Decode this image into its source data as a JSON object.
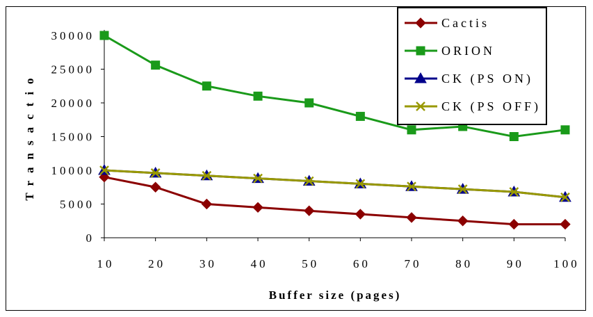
{
  "chart_data": {
    "type": "line",
    "x": [
      10,
      20,
      30,
      40,
      50,
      60,
      70,
      80,
      90,
      100
    ],
    "xlabel": "Buffer size (pages)",
    "ylabel": "Transactio",
    "ylim": [
      0,
      30000
    ],
    "yticks": [
      0,
      5000,
      10000,
      15000,
      20000,
      25000,
      30000
    ],
    "grid": false,
    "legend_position": "top-right",
    "series": [
      {
        "name": "Cactis",
        "color": "#8B0000",
        "marker": "diamond",
        "values": [
          9000,
          7500,
          5000,
          4500,
          4000,
          3500,
          3000,
          2500,
          2000,
          2000
        ]
      },
      {
        "name": "ORION",
        "color": "#1A9A1A",
        "marker": "square",
        "values": [
          30000,
          25600,
          22500,
          21000,
          20000,
          18000,
          16000,
          16500,
          15000,
          16000
        ]
      },
      {
        "name": "CK (PS ON)",
        "color": "#00008B",
        "marker": "triangle",
        "values": [
          10000,
          9600,
          9200,
          8800,
          8400,
          8000,
          7600,
          7200,
          6800,
          6000
        ]
      },
      {
        "name": "CK (PS OFF)",
        "color": "#999900",
        "marker": "x",
        "values": [
          10000,
          9600,
          9200,
          8800,
          8400,
          8000,
          7600,
          7200,
          6800,
          6000
        ]
      }
    ]
  }
}
